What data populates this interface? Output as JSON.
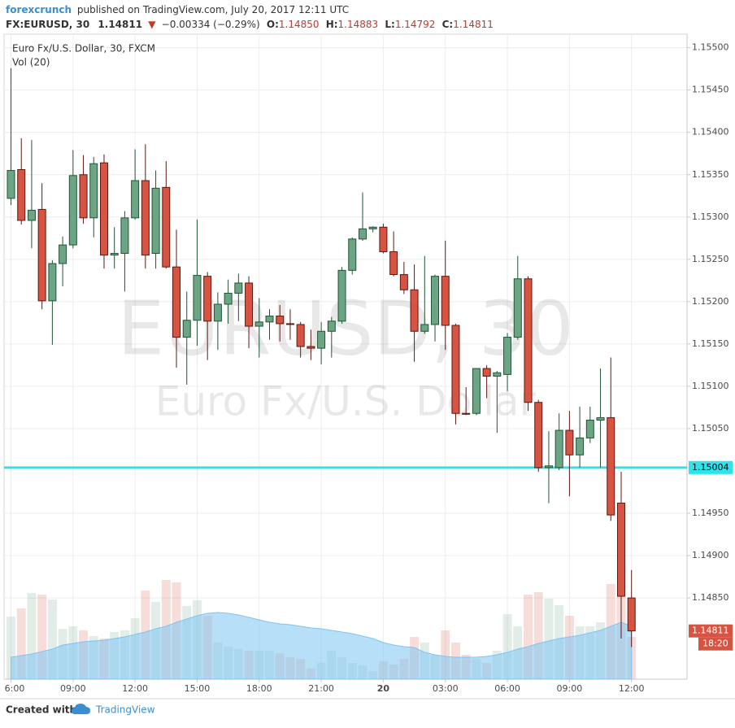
{
  "header": {
    "author": "forexcrunch",
    "published": "published on TradingView.com, July 20, 2017 12:11 UTC",
    "symbol": "FX:EURUSD, 30",
    "last": "1.14811",
    "change": "−0.00334 (−0.29%)",
    "ohlc": [
      {
        "label": "O:",
        "value": "1.14850"
      },
      {
        "label": "H:",
        "value": "1.14883"
      },
      {
        "label": "L:",
        "value": "1.14792"
      },
      {
        "label": "C:",
        "value": "1.14811"
      }
    ]
  },
  "footer": {
    "created": "Created with",
    "brand": "TradingView"
  },
  "chart_data": {
    "type": "candlestick",
    "watermark": [
      "EURUSD, 30",
      "Euro Fx/U.S. Dollar"
    ],
    "categories": [
      "6:00",
      null,
      null,
      null,
      null,
      null,
      "09:00",
      null,
      null,
      null,
      null,
      null,
      "12:00",
      null,
      null,
      null,
      null,
      null,
      "15:00",
      null,
      null,
      null,
      null,
      null,
      "18:00",
      null,
      null,
      null,
      null,
      null,
      "21:00",
      null,
      null,
      null,
      null,
      null,
      "20",
      null,
      null,
      null,
      null,
      null,
      "03:00",
      null,
      null,
      null,
      null,
      null,
      "06:00",
      null,
      null,
      null,
      null,
      null,
      "09:00",
      null,
      null,
      null,
      null,
      null,
      "12:00"
    ],
    "series": [
      {
        "name": "Euro Fx/U.S. Dollar, 30, FXCM",
        "up_color": "#6ba583",
        "down_color": "#d75442",
        "open": [
          1.15322,
          1.15356,
          1.15296,
          1.15309,
          1.15201,
          1.15245,
          1.15267,
          1.1535,
          1.15299,
          1.15364,
          1.15255,
          1.15257,
          1.15299,
          1.15343,
          1.15257,
          1.15335,
          1.15241,
          1.15158,
          1.15178,
          1.1523,
          1.15177,
          1.15197,
          1.1521,
          1.15222,
          1.15171,
          1.15176,
          1.15183,
          1.15174,
          1.15173,
          1.15147,
          1.15145,
          1.15165,
          1.15177,
          1.15237,
          1.15274,
          1.15286,
          1.15288,
          1.15259,
          1.15232,
          1.15214,
          1.15165,
          1.15173,
          1.1523,
          1.15172,
          1.15068,
          1.15068,
          1.15121,
          1.15112,
          1.15114,
          1.15158,
          1.15227,
          1.15081,
          1.15004,
          1.15004,
          1.15048,
          1.15019,
          1.15039,
          1.1506,
          1.15063,
          1.14962,
          1.1485
        ],
        "high": [
          1.15476,
          1.15393,
          1.15391,
          1.1534,
          1.15249,
          1.15277,
          1.15379,
          1.15373,
          1.15371,
          1.15374,
          1.15288,
          1.15307,
          1.1538,
          1.15386,
          1.15355,
          1.15366,
          1.15285,
          1.15212,
          1.15297,
          1.15235,
          1.15211,
          1.15226,
          1.15233,
          1.1523,
          1.15204,
          1.15191,
          1.15196,
          1.15191,
          1.15176,
          1.15167,
          1.15176,
          1.15182,
          1.15241,
          1.15276,
          1.15329,
          1.15289,
          1.15292,
          1.15283,
          1.15247,
          1.15244,
          1.15254,
          1.15232,
          1.15272,
          1.15174,
          1.15099,
          1.15121,
          1.15125,
          1.15118,
          1.15163,
          1.15254,
          1.1523,
          1.15084,
          1.15047,
          1.15068,
          1.15071,
          1.15076,
          1.15076,
          1.15121,
          1.15134,
          1.14999,
          1.14883
        ],
        "low": [
          1.15314,
          1.15291,
          1.15263,
          1.15191,
          1.15149,
          1.15218,
          1.15263,
          1.15292,
          1.15276,
          1.15239,
          1.15239,
          1.15212,
          1.15297,
          1.15239,
          1.15239,
          1.15239,
          1.15122,
          1.15102,
          1.15148,
          1.15131,
          1.15143,
          1.15174,
          1.15177,
          1.15145,
          1.15134,
          1.15155,
          1.15153,
          1.15155,
          1.15134,
          1.15131,
          1.15126,
          1.15134,
          1.15174,
          1.15232,
          1.15272,
          1.15282,
          1.15257,
          1.1523,
          1.15209,
          1.15129,
          1.15162,
          1.15153,
          1.15143,
          1.15055,
          1.15066,
          1.15066,
          1.15086,
          1.15045,
          1.15094,
          1.15155,
          1.15071,
          1.14999,
          1.14962,
          1.15001,
          1.1497,
          1.15004,
          1.15033,
          1.15004,
          1.14941,
          1.14802,
          1.14792
        ],
        "close": [
          1.15355,
          1.15296,
          1.15308,
          1.15201,
          1.15245,
          1.15267,
          1.15349,
          1.15299,
          1.15363,
          1.15255,
          1.15257,
          1.15299,
          1.15343,
          1.15255,
          1.15334,
          1.15241,
          1.15158,
          1.15178,
          1.15231,
          1.15177,
          1.15197,
          1.1521,
          1.15222,
          1.15171,
          1.15176,
          1.15183,
          1.15174,
          1.15173,
          1.15147,
          1.15145,
          1.15165,
          1.15177,
          1.15237,
          1.15274,
          1.15286,
          1.15288,
          1.15259,
          1.15232,
          1.15214,
          1.15165,
          1.15173,
          1.1523,
          1.15172,
          1.15068,
          1.15067,
          1.15121,
          1.15112,
          1.15116,
          1.15158,
          1.15227,
          1.15081,
          1.15004,
          1.15006,
          1.15048,
          1.15019,
          1.15039,
          1.1506,
          1.15063,
          1.14948,
          1.14852,
          1.14811
        ]
      }
    ],
    "volume": {
      "name": "Vol (20)",
      "ma_color": "#7ec4f2",
      "values": [
        77,
        87,
        106,
        104,
        98,
        62,
        65,
        60,
        53,
        50,
        58,
        60,
        75,
        109,
        95,
        122,
        119,
        90,
        97,
        78,
        45,
        40,
        37,
        35,
        35,
        35,
        32,
        27,
        25,
        13,
        20,
        35,
        27,
        20,
        17,
        10,
        22,
        18,
        25,
        52,
        45,
        30,
        60,
        45,
        30,
        25,
        20,
        35,
        80,
        65,
        104,
        107,
        99,
        91,
        78,
        65,
        65,
        70,
        117,
        102,
        52
      ],
      "ma": [
        27,
        29,
        31,
        34,
        37,
        42,
        44,
        46,
        47,
        48,
        50,
        52,
        55,
        58,
        62,
        65,
        70,
        74,
        78,
        81,
        82,
        81,
        79,
        76,
        73,
        70,
        68,
        67,
        65,
        63,
        62,
        60,
        58,
        56,
        53,
        50,
        45,
        42,
        40,
        39,
        33,
        30,
        28,
        27,
        27,
        27,
        28,
        30,
        33,
        37,
        40,
        44,
        47,
        50,
        52,
        54,
        57,
        60,
        65,
        70,
        65
      ]
    },
    "ylim": [
      1.14754,
      1.15516
    ],
    "yticks": [
      {
        "value": 1.155,
        "label": "1.15500"
      },
      {
        "value": 1.1545,
        "label": "1.15450"
      },
      {
        "value": 1.154,
        "label": "1.15400"
      },
      {
        "value": 1.1535,
        "label": "1.15350"
      },
      {
        "value": 1.153,
        "label": "1.15300"
      },
      {
        "value": 1.1525,
        "label": "1.15250"
      },
      {
        "value": 1.152,
        "label": "1.15200"
      },
      {
        "value": 1.1515,
        "label": "1.15150"
      },
      {
        "value": 1.151,
        "label": "1.15100"
      },
      {
        "value": 1.1505,
        "label": "1.15050"
      },
      {
        "value": 1.1495,
        "label": "1.14950"
      },
      {
        "value": 1.149,
        "label": "1.14900"
      },
      {
        "value": 1.1485,
        "label": "1.14850"
      }
    ],
    "grid": true,
    "hline": {
      "value": 1.15004,
      "color": "#2fe3ee"
    },
    "countdown": "18:20"
  }
}
